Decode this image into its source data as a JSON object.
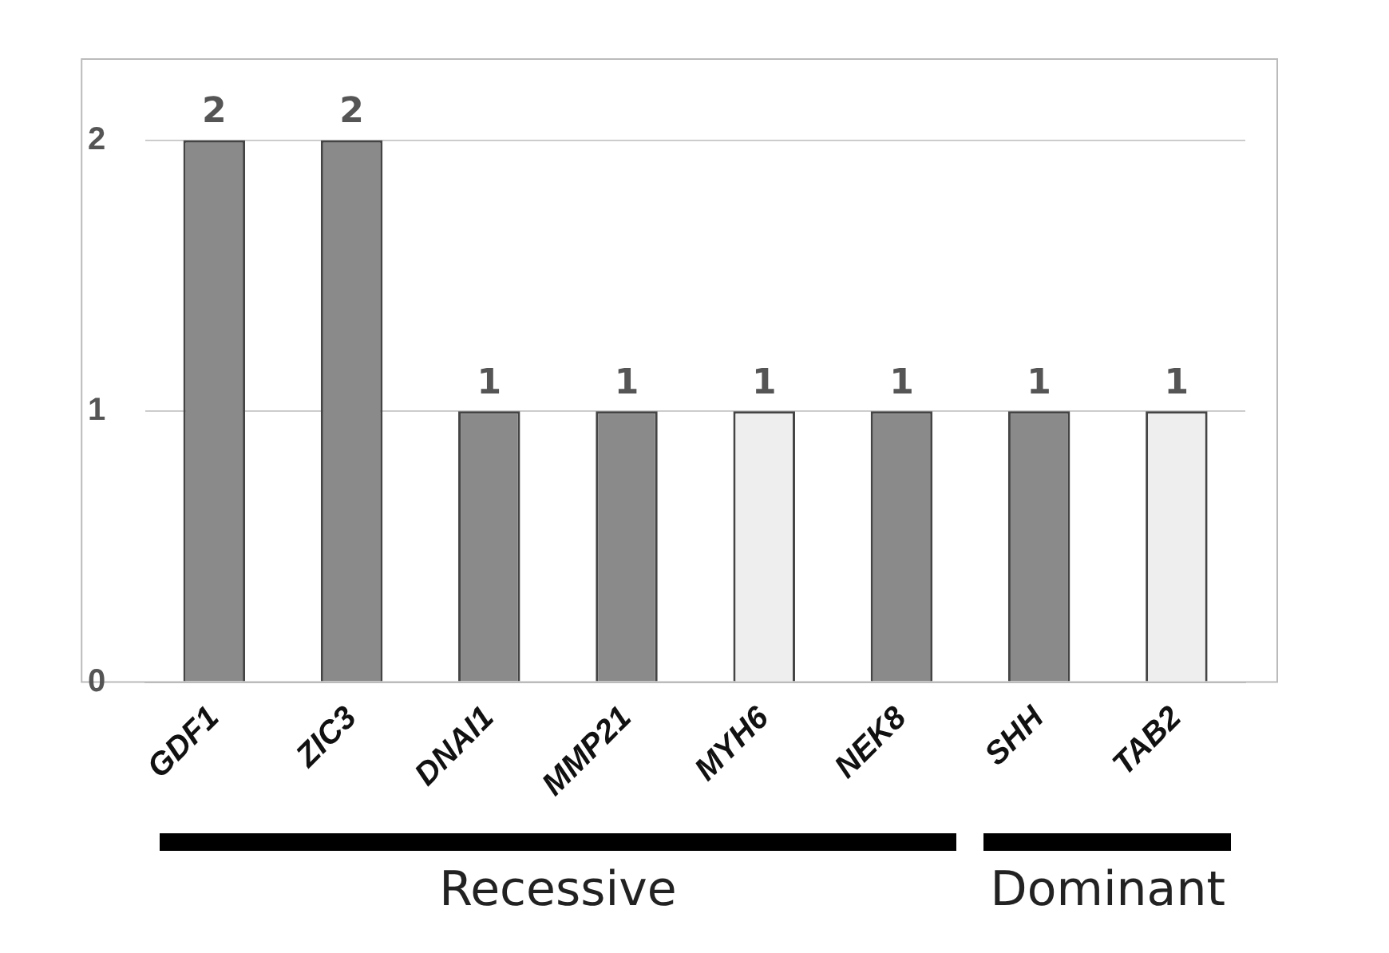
{
  "chart_data": {
    "type": "bar",
    "categories": [
      "GDF1",
      "ZIC3",
      "DNAI1",
      "MMP21",
      "MYH6",
      "NEK8",
      "SHH",
      "TAB2"
    ],
    "values": [
      2,
      2,
      1,
      1,
      1,
      1,
      1,
      1
    ],
    "colors": [
      "#8a8a8a",
      "#8a8a8a",
      "#8a8a8a",
      "#8a8a8a",
      "#eeeeee",
      "#8a8a8a",
      "#8a8a8a",
      "#eeeeee"
    ],
    "ylim": [
      0,
      2.3
    ],
    "yticks": [
      0,
      1,
      2
    ],
    "grid": "y",
    "legend": false,
    "data_labels": true,
    "annotations": [
      "Recessive",
      "Dominant"
    ]
  }
}
